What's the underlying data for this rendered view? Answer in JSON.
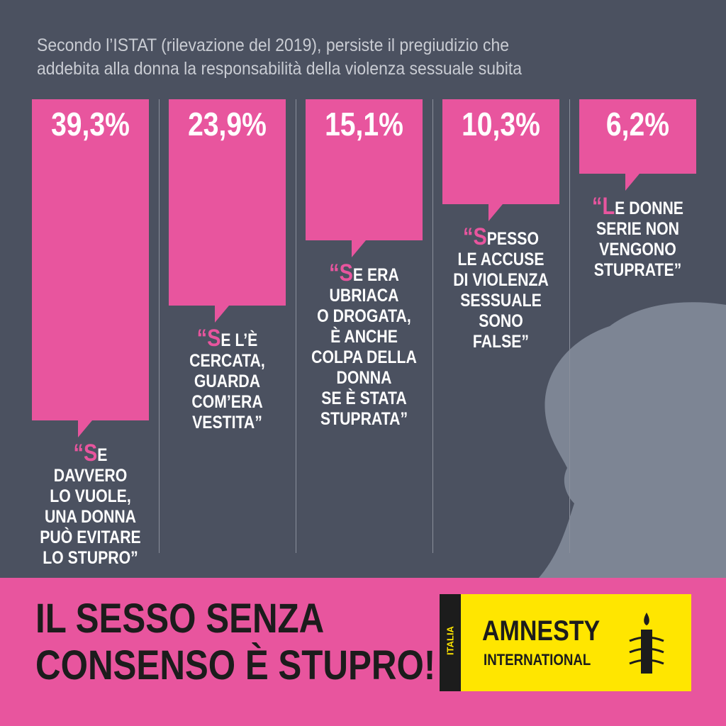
{
  "chart_data": {
    "type": "bar",
    "title": "Secondo l’ISTAT (rilevazione del 2019), persiste il pregiudizio che\naddebita alla donna la responsabilità della violenza sessuale subita",
    "categories": [
      "“SE DAVVERO\nLO VUOLE,\nUNA DONNA\nPUÒ EVITARE\nLO STUPRO”",
      "“SE L’È\nCERCATA,\nGUARDA\nCOM’ERA\nVESTITA”",
      "“SE ERA\nUBRIACA\nO DROGATA,\nÈ ANCHE\nCOLPA DELLA\nDONNA\nSE È STATA\nSTUPRATA”",
      "“SPESSO\nLE ACCUSE\nDI VIOLENZA\nSESSUALE\nSONO\nFALSE”",
      "“LE DONNE\nSERIE NON\nVENGONO\nSTUPRATE”"
    ],
    "values": [
      39.3,
      23.9,
      15.1,
      10.3,
      6.2
    ],
    "value_labels": [
      "39,3%",
      "23,9%",
      "15,1%",
      "10,3%",
      "6,2%"
    ],
    "color": "#e8559e",
    "slogan": "IL SESSO SENZA\nCONSENSO È STUPRO!",
    "logo": {
      "country": "ITALIA",
      "name": "AMNESTY",
      "subtitle": "INTERNATIONAL"
    }
  }
}
